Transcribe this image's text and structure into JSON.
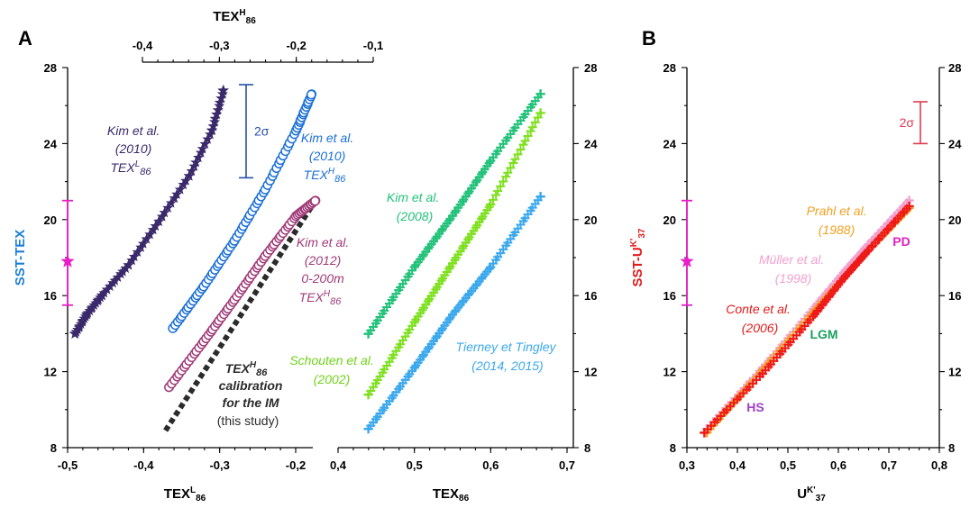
{
  "panels": [
    {
      "letter": "A",
      "ylabel": "SST-TEX",
      "ylim": [
        8,
        28
      ],
      "yticks": [
        "8",
        "12",
        "16",
        "20",
        "24",
        "28"
      ],
      "top_axis": {
        "label": "TEX",
        "sup": "H",
        "sub": "86",
        "ticks": [
          "-0,4",
          "-0,3",
          "-0,2",
          "-0,1"
        ],
        "range": [
          -0.4,
          -0.1
        ]
      },
      "bottom_left_axis": {
        "label": "TEX",
        "sup": "L",
        "sub": "86",
        "ticks": [
          "-0,5",
          "-0,4",
          "-0,3",
          "-0,2"
        ],
        "range": [
          -0.5,
          -0.18
        ]
      },
      "bottom_right_axis": {
        "label": "TEX",
        "sub": "86",
        "ticks": [
          "0,4",
          "0,5",
          "0,6",
          "0,7"
        ],
        "range": [
          0.4,
          0.7
        ]
      },
      "star_marker": {
        "value": 17.8,
        "low": 15.5,
        "high": 21
      },
      "sigma": {
        "label": "2σ",
        "low": 22.2,
        "high": 27.1
      },
      "annotations": {
        "kim2010L": [
          "Kim et al.",
          "(2010)",
          "TEX",
          "L",
          "86"
        ],
        "kim2010H": [
          "Kim et al.",
          "(2010)",
          "TEX",
          "H",
          "86"
        ],
        "kim2012": [
          "Kim et al.",
          "(2012)",
          "0-200m",
          "TEX",
          "H",
          "86"
        ],
        "thisstudy": [
          "TEX",
          "H",
          "86",
          "calibration",
          "for the IM",
          "(this study)"
        ],
        "kim2008": [
          "Kim et al.",
          "(2008)"
        ],
        "schouten": [
          "Schouten et al.",
          "(2002)"
        ],
        "tierney": [
          "Tierney et Tingley",
          "(2014, 2015)"
        ]
      }
    },
    {
      "letter": "B",
      "ylabel": "SST-U",
      "ylabel_sup": "K'",
      "ylabel_sub": "37",
      "ylim": [
        8,
        28
      ],
      "yticks": [
        "8",
        "12",
        "16",
        "20",
        "24",
        "28"
      ],
      "bottom_axis": {
        "label": "U",
        "sup": "K'",
        "sub": "37",
        "ticks": [
          "0,3",
          "0,4",
          "0,5",
          "0,6",
          "0,7",
          "0,8"
        ],
        "range": [
          0.3,
          0.8
        ]
      },
      "star_marker": {
        "value": 17.8,
        "low": 15.5,
        "high": 21
      },
      "sigma": {
        "label": "2σ",
        "low": 24,
        "high": 26.2
      },
      "annotations": {
        "prahl": [
          "Prahl et al.",
          "(1988)"
        ],
        "muller": [
          "Müller et al.",
          "(1998)"
        ],
        "conte": [
          "Conte et al.",
          "(2006)"
        ],
        "pd": "PD",
        "lgm": "LGM",
        "hs": "HS"
      }
    }
  ],
  "chart_data": [
    {
      "type": "scatter",
      "panel": "A-left",
      "ylabel": "SST-TEX",
      "ylim": [
        8,
        28
      ],
      "series": [
        {
          "name": "Kim et al. (2010) TEXL86",
          "axis": "TEXL86",
          "marker": "star",
          "color": "#3b2a6b",
          "x": [
            -0.49,
            -0.475,
            -0.455,
            -0.42,
            -0.38,
            -0.34,
            -0.31,
            -0.295
          ],
          "y": [
            14,
            15,
            16,
            17.6,
            19.9,
            22.3,
            24.7,
            26.8
          ]
        },
        {
          "name": "Kim et al. (2010) TEXH86",
          "axis": "TEXH86",
          "marker": "circle",
          "color": "#1a6fd6",
          "x": [
            -0.36,
            -0.32,
            -0.28,
            -0.24,
            -0.2,
            -0.18
          ],
          "y": [
            14.3,
            16.5,
            18.9,
            21.6,
            24.7,
            26.6
          ]
        },
        {
          "name": "Kim et al. (2012) 0-200m TEXH86",
          "axis": "TEXH86",
          "marker": "circle",
          "color": "#a03a78",
          "x": [
            -0.365,
            -0.32,
            -0.28,
            -0.24,
            -0.2,
            -0.175
          ],
          "y": [
            11.2,
            13.6,
            15.8,
            18.1,
            20.2,
            21
          ]
        },
        {
          "name": "TEXH86 calibration for the IM (this study)",
          "axis": "TEXH86",
          "marker": "dashed-line",
          "color": "#2b2b2b",
          "x": [
            -0.37,
            -0.175
          ],
          "y": [
            8.9,
            21
          ]
        }
      ]
    },
    {
      "type": "scatter",
      "panel": "A-right",
      "xlabel": "TEX86",
      "xlim": [
        0.4,
        0.7
      ],
      "ylim": [
        8,
        28
      ],
      "series": [
        {
          "name": "Kim et al. (2008)",
          "marker": "plus",
          "color": "#22c27a",
          "x": [
            0.44,
            0.5,
            0.55,
            0.6,
            0.665
          ],
          "y": [
            14,
            17.5,
            20.2,
            23.1,
            26.6
          ]
        },
        {
          "name": "Schouten et al. (2002)",
          "marker": "plus",
          "color": "#7fe020",
          "x": [
            0.44,
            0.5,
            0.55,
            0.6,
            0.665
          ],
          "y": [
            10.8,
            14.6,
            17.7,
            20.8,
            25.6
          ]
        },
        {
          "name": "Tierney et Tingley (2014, 2015)",
          "marker": "plus",
          "color": "#3aa8ec",
          "x": [
            0.44,
            0.5,
            0.55,
            0.6,
            0.665
          ],
          "y": [
            9,
            12.2,
            15,
            17.5,
            21.2
          ]
        }
      ]
    },
    {
      "type": "scatter",
      "panel": "B",
      "xlabel": "UK'37",
      "ylabel": "SST-UK'37",
      "xlim": [
        0.3,
        0.8
      ],
      "ylim": [
        8,
        28
      ],
      "series": [
        {
          "name": "Müller et al. (1998)",
          "marker": "plus",
          "color": "#f2a0cf",
          "x": [
            0.34,
            0.45,
            0.55,
            0.61,
            0.66,
            0.74
          ],
          "y": [
            9,
            12.2,
            15.3,
            17.2,
            18.7,
            21
          ]
        },
        {
          "name": "Prahl et al. (1988)",
          "marker": "plus",
          "color": "#f2a020",
          "x": [
            0.34,
            0.45,
            0.55,
            0.61,
            0.66,
            0.74
          ],
          "y": [
            8.8,
            12.1,
            15.1,
            16.9,
            18.4,
            20.6
          ]
        },
        {
          "name": "Conte et al. (2006)",
          "marker": "plus",
          "color": "#ee1a1a",
          "x": [
            0.335,
            0.45,
            0.55,
            0.61,
            0.66,
            0.74
          ],
          "y": [
            8.8,
            11.9,
            14.9,
            16.9,
            18.4,
            20.7
          ]
        }
      ]
    }
  ]
}
